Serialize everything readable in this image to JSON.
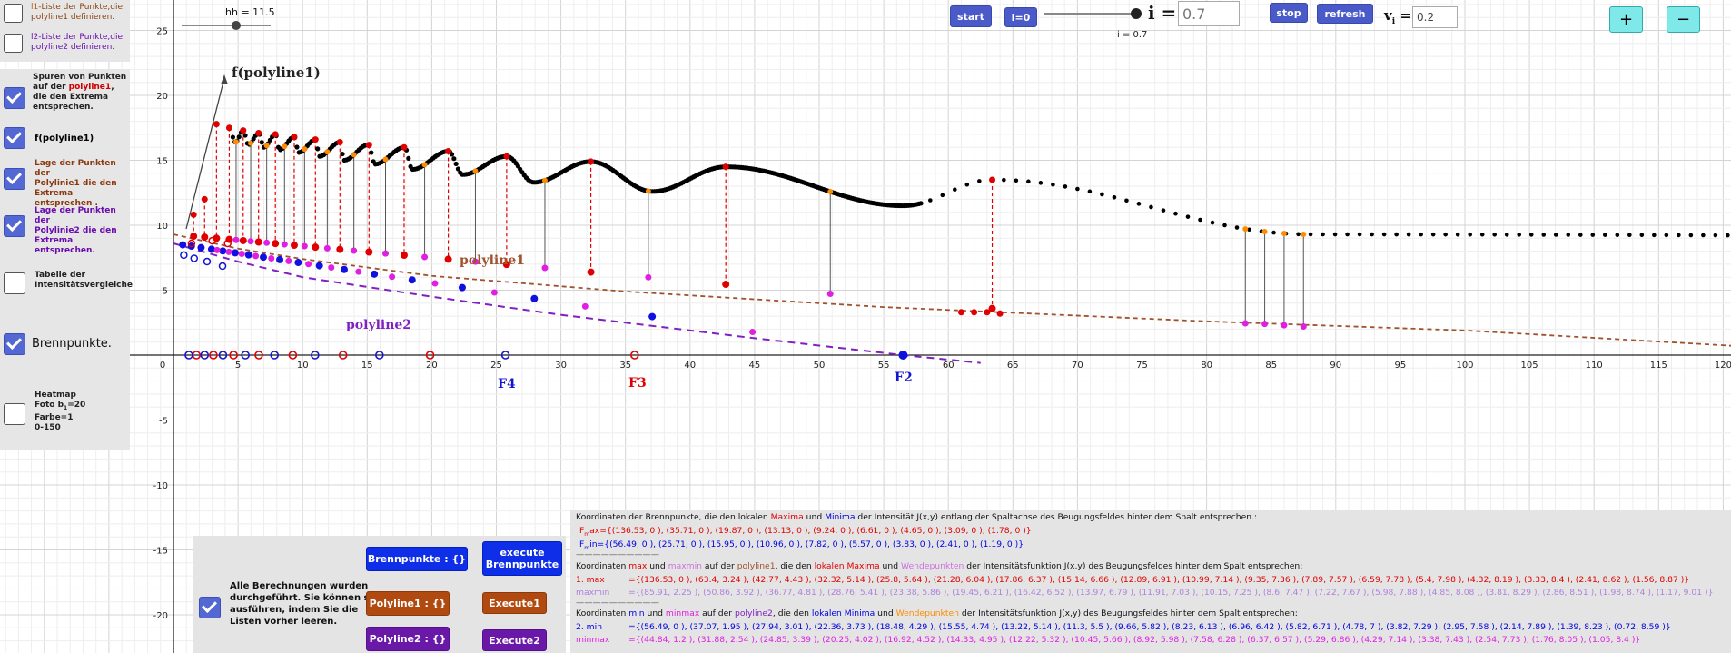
{
  "colors": {
    "max": "#e00000",
    "min": "#0000e0",
    "brown": "#a0522d",
    "purple": "#8020c0",
    "orange": "#ff8c00",
    "pink": "#e020e0",
    "button": "#4a5bc9"
  },
  "graph": {
    "x_ticks": [
      "0",
      "5",
      "10",
      "15",
      "20",
      "25",
      "30",
      "35",
      "40",
      "45",
      "50",
      "55",
      "60",
      "65",
      "70",
      "75",
      "80",
      "85",
      "90",
      "95",
      "100",
      "105",
      "110",
      "115",
      "120"
    ],
    "y_ticks": [
      "25",
      "20",
      "15",
      "10",
      "5",
      "-5",
      "-10",
      "-15",
      "-20"
    ]
  },
  "slider_hh": {
    "label": "hh = 11.5"
  },
  "toolbar": {
    "start": "start",
    "i0": "i=0",
    "i_symbol": "i =",
    "i_value": "0.7",
    "i_caption": "i = 0.7",
    "stop": "stop",
    "refresh": "refresh",
    "vi_symbol": "v",
    "vi_sub": "i",
    "vi_eq": "=",
    "vi_value": "0.2",
    "zoom_in": "+",
    "zoom_out": "−"
  },
  "sidebar": {
    "l1": {
      "prefix": "l1",
      "rest": "-Liste der Punkte,die",
      "line2": "polyline1 definieren."
    },
    "l2": {
      "prefix": "l2",
      "rest": "-Liste der Punkte,die",
      "line2": "polyline2 definieren."
    },
    "spuren": {
      "a": "Spuren von Punkten",
      "b1": "auf der ",
      "b2": "polyline1",
      "b3": ",",
      "c": "die den Extrema",
      "d": "entsprechen."
    },
    "fpoly": "f(polyline1)",
    "lage1": [
      "Lage der Punkten der",
      "Polylinie1 die den",
      "Extrema entsprechen ."
    ],
    "lage2": [
      "Lage der Punkten der",
      "Polylinie2 die den",
      "Extrema entsprechen."
    ],
    "tabelle": [
      "Tabelle der",
      "Intensitätsvergleiche"
    ],
    "brenn": "Brennpunkte.",
    "heatmap": [
      "Heatmap",
      "Foto b",
      "1",
      "=20",
      "Farbe=1",
      "0-150"
    ]
  },
  "graph_labels": {
    "f_polyline1": "f(polyline1)",
    "polyline1": "polyline1",
    "polyline2": "polyline2",
    "F4": "F4",
    "F3": "F3",
    "F2": "F2"
  },
  "calc": {
    "text": [
      "Alle Berechnungen wurden",
      "durchgeführt. Sie können sie",
      "ausführen, indem Sie die",
      "Listen vorher leeren."
    ],
    "brennpunkte_btn": "Brennpunkte : {}",
    "execute_brenn": "execute Brennpunkte",
    "polyline1_btn": "Polyline1 : {}",
    "execute1": "Execute1",
    "polyline2_btn": "Polyline2 : {}",
    "execute2": "Execute2"
  },
  "info": {
    "l1": [
      "Koordinaten der Brennpunkte, die den lokalen ",
      "Maxima",
      " und ",
      "Minima",
      " der Intensität J(x,y) entlang der Spaltachse des Beugungsfeldes hinter dem Spalt entsprechen.:"
    ],
    "fmax_label": "F",
    "fmax_sub": "m",
    "fmax_rest": "ax={(136.53, 0 ), (35.71, 0 ), (19.87, 0 ), (13.13, 0 ), (9.24, 0 ), (6.61, 0 ), (4.65, 0 ), (3.09, 0 ), (1.78, 0 )}",
    "fmin_label": "F",
    "fmin_sub": "m",
    "fmin_rest": "in={(56.49, 0 ), (25.71, 0 ), (15.95, 0 ), (10.96, 0 ), (7.82, 0 ), (5.57, 0 ), (3.83, 0 ), (2.41, 0 ), (1.19, 0 )}",
    "sep": "——————————",
    "l4": [
      "Koordinaten ",
      "max",
      " und ",
      "maxmin",
      " auf der ",
      "polyline1",
      ", die den ",
      "lokalen Maxima",
      " und ",
      "Wendepunkten",
      " der Intensitätsfunktion J(x,y) des Beugungsfeldes hinter dem Spalt entsprechen:"
    ],
    "max_label": "1.  max",
    "max_values": "={(136.53, 0 ), (63.4, 3.24 ), (42.77, 4.43 ), (32.32, 5.14 ), (25.8, 5.64 ), (21.28, 6.04 ), (17.86, 6.37 ), (15.14, 6.66 ), (12.89, 6.91 ), (10.99, 7.14 ), (9.35, 7.36 ), (7.89, 7.57 ), (6.59, 7.78 ), (5.4, 7.98 ), (4.32, 8.19 ), (3.33, 8.4 ), (2.41, 8.62 ), (1.56, 8.87 )}",
    "maxmin_label": "maxmin",
    "maxmin_values": "={(85.91, 2.25 ), (50.86, 3.92 ), (36.77, 4.81 ), (28.76, 5.41 ), (23.38, 5.86 ), (19.45, 6.21 ), (16.42, 6.52 ), (13.97, 6.79 ), (11.91, 7.03 ), (10.15, 7.25 ), (8.6, 7.47 ), (7.22, 7.67 ), (5.98, 7.88 ), (4.85, 8.08 ), (3.81, 8.29 ), (2.86, 8.51 ), (1.98, 8.74 ), (1.17, 9.01 )}",
    "l8": [
      "Koordinaten ",
      "min",
      " und ",
      "minmax",
      " auf der ",
      "polyline2",
      ", die den ",
      "lokalen Minima",
      " und ",
      "Wendepunkten",
      " der Intensitätsfunktion J(x,y) des Beugungsfeldes hinter dem Spalt entsprechen:"
    ],
    "min_label": "2.  min",
    "min_values": "={(56.49, 0 ), (37.07, 1.95 ), (27.94, 3.01 ), (22.36, 3.73 ), (18.48, 4.29 ), (15.55, 4.74 ), (13.22, 5.14 ), (11.3, 5.5 ), (9.66, 5.82 ), (8.23, 6.13 ), (6.96, 6.42 ), (5.82, 6.71 ), (4.78, 7 ), (3.82, 7.29 ), (2.95, 7.58 ), (2.14, 7.89 ), (1.39, 8.23 ), (0.72, 8.59 )}",
    "minmax_label": "minmax",
    "minmax_values": "={(44.84, 1.2 ), (31.88, 2.54 ), (24.85, 3.39 ), (20.25, 4.02 ), (16.92, 4.52 ), (14.33, 4.95 ), (12.22, 5.32 ), (10.45, 5.66 ), (8.92, 5.98 ), (7.58, 6.28 ), (6.37, 6.57 ), (5.29, 6.86 ), (4.29, 7.14 ), (3.38, 7.43 ), (2.54, 7.73 ), (1.76, 8.05 ), (1.05, 8.4 )}"
  }
}
